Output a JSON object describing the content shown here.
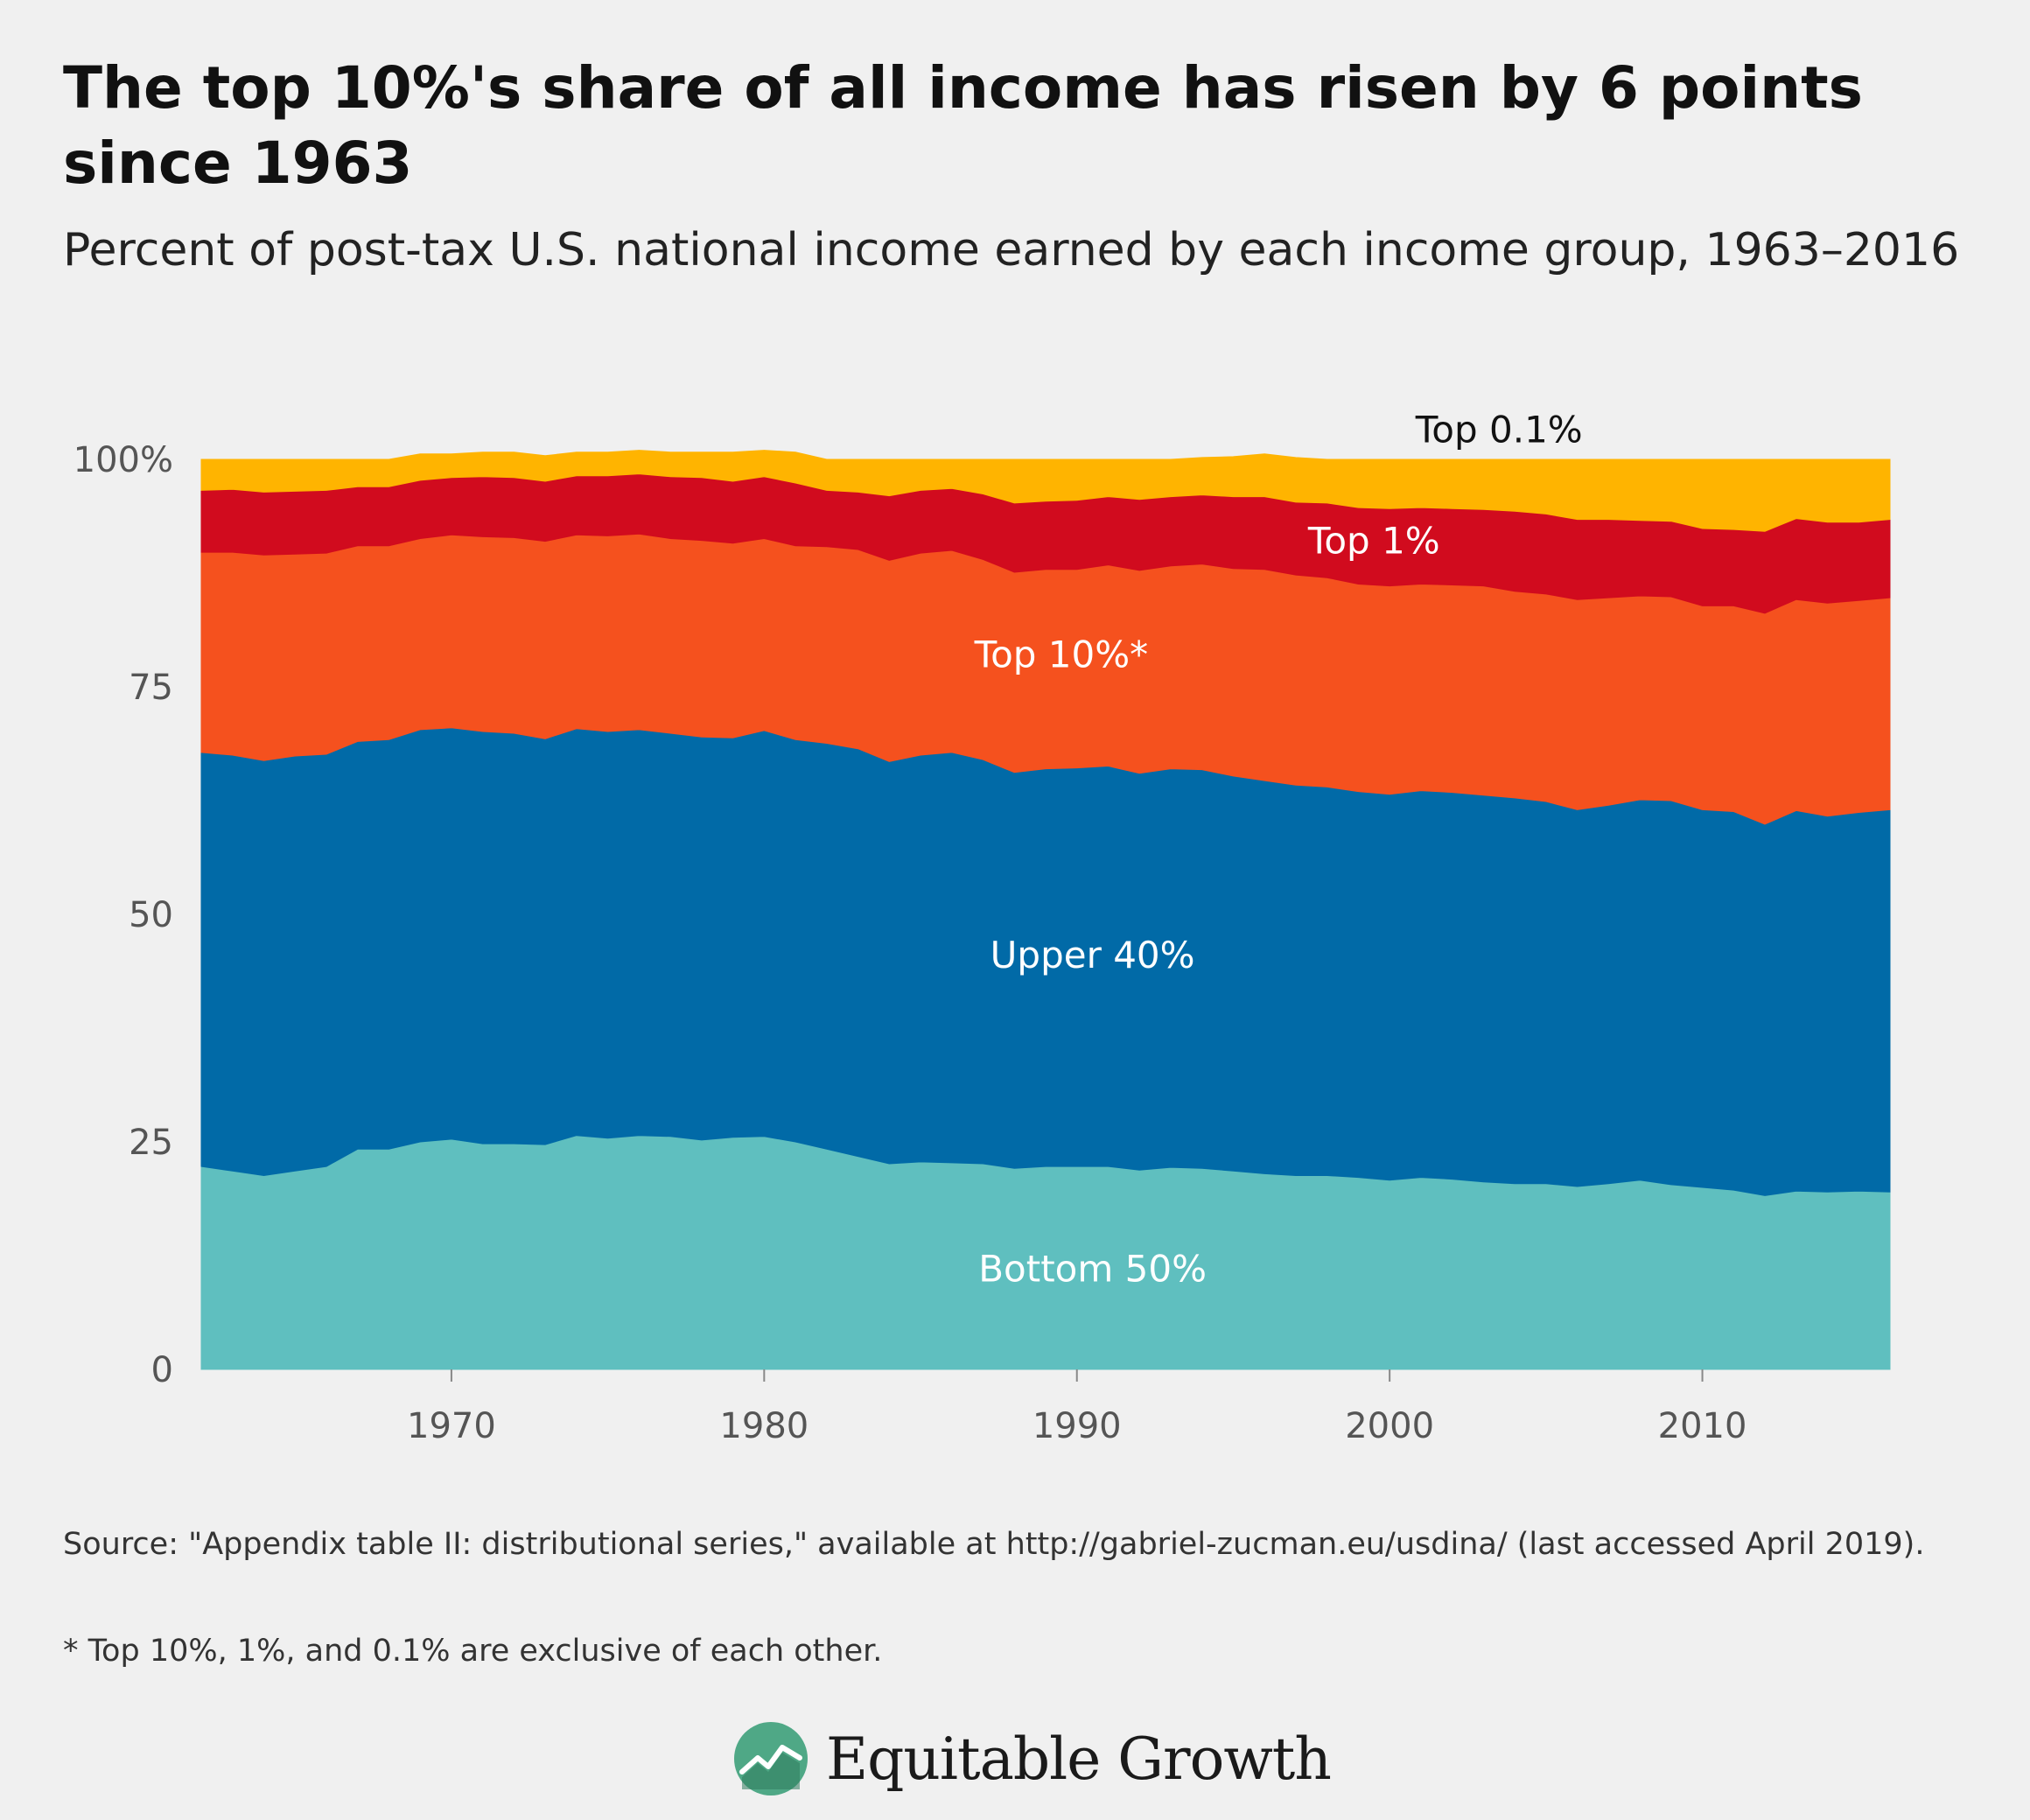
{
  "title": "The top 10%'s share of all income has risen by 6 points since 1963",
  "subtitle": "Percent of post-tax U.S. national income earned by each income group, 1963–2016",
  "footer": {
    "source": "Source: \"Appendix table II: distributional series,\" available at http://gabriel-zucman.eu/usdina/ (last accessed April 2019).",
    "note": "* Top 10%, 1%, and 0.1% are exclusive of each other.",
    "brand": "Equitable Growth"
  },
  "chart_data": {
    "type": "area",
    "stacked": true,
    "title": "The top 10%'s share of all income has risen by 6 points since 1963",
    "subtitle": "Percent of post-tax U.S. national income earned by each income group, 1963–2016",
    "xlabel": "",
    "ylabel": "",
    "xlim": [
      1962,
      2016
    ],
    "ylim": [
      0,
      100
    ],
    "x_ticks": [
      1970,
      1980,
      1990,
      2000,
      2010
    ],
    "x_tick_labels": [
      "1970",
      "1980",
      "1990",
      "2000",
      "2010"
    ],
    "y_ticks": [
      0,
      25,
      50,
      75,
      100
    ],
    "y_tick_labels": [
      "0",
      "25",
      "50",
      "75",
      "100%"
    ],
    "grid": false,
    "legend": "inline labels",
    "x": [
      1962,
      1963,
      1964,
      1965,
      1966,
      1967,
      1968,
      1969,
      1970,
      1971,
      1972,
      1973,
      1974,
      1975,
      1976,
      1977,
      1978,
      1979,
      1980,
      1981,
      1982,
      1983,
      1984,
      1985,
      1986,
      1987,
      1988,
      1989,
      1990,
      1991,
      1992,
      1993,
      1994,
      1995,
      1996,
      1997,
      1998,
      1999,
      2000,
      2001,
      2002,
      2003,
      2004,
      2005,
      2006,
      2007,
      2008,
      2009,
      2010,
      2011,
      2012,
      2013,
      2014,
      2015,
      2016
    ],
    "series": [
      {
        "name": "Bottom 50%",
        "color": "#5fbfbf",
        "label_color": "#ffffff",
        "values": [
          22.3,
          21.8,
          21.3,
          21.8,
          22.3,
          24.2,
          24.2,
          25.0,
          25.3,
          24.8,
          24.8,
          24.7,
          25.7,
          25.4,
          25.7,
          25.6,
          25.2,
          25.5,
          25.6,
          25.0,
          24.2,
          23.4,
          22.6,
          22.8,
          22.7,
          22.6,
          22.1,
          22.3,
          22.3,
          22.3,
          21.9,
          22.2,
          22.1,
          21.8,
          21.5,
          21.3,
          21.3,
          21.1,
          20.8,
          21.1,
          20.9,
          20.6,
          20.4,
          20.4,
          20.1,
          20.4,
          20.8,
          20.3,
          20.0,
          19.7,
          19.1,
          19.6,
          19.5,
          19.6,
          19.5
        ]
      },
      {
        "name": "Upper 40%",
        "color": "#016aa7",
        "label_color": "#ffffff",
        "values": [
          45.5,
          45.7,
          45.6,
          45.6,
          45.3,
          44.8,
          45.0,
          45.3,
          45.2,
          45.3,
          45.1,
          44.6,
          44.7,
          44.7,
          44.6,
          44.3,
          44.3,
          43.9,
          44.6,
          44.2,
          44.6,
          44.8,
          44.2,
          44.7,
          45.1,
          44.4,
          43.5,
          43.7,
          43.8,
          44.0,
          43.6,
          43.8,
          43.8,
          43.4,
          43.2,
          42.9,
          42.7,
          42.4,
          42.4,
          42.5,
          42.5,
          42.5,
          42.4,
          42.0,
          41.4,
          41.6,
          41.8,
          42.2,
          41.5,
          41.6,
          40.8,
          41.8,
          41.3,
          41.6,
          42.0
        ]
      },
      {
        "name": "Top 10%*",
        "color": "#f5511e",
        "label_color": "#ffffff",
        "values": [
          22.0,
          22.3,
          22.6,
          22.2,
          22.1,
          21.5,
          21.3,
          21.0,
          21.2,
          21.4,
          21.5,
          21.7,
          21.3,
          21.5,
          21.5,
          21.4,
          21.6,
          21.4,
          21.1,
          21.3,
          21.6,
          21.9,
          22.1,
          22.2,
          22.2,
          22.0,
          22.0,
          21.9,
          21.8,
          22.1,
          22.3,
          22.3,
          22.6,
          22.8,
          23.2,
          23.1,
          23.0,
          22.8,
          22.9,
          22.7,
          22.8,
          23.0,
          22.7,
          22.8,
          23.1,
          22.8,
          22.4,
          22.4,
          22.4,
          22.6,
          23.2,
          23.2,
          23.4,
          23.3,
          23.3
        ]
      },
      {
        "name": "Top 1%",
        "color": "#d10b1e",
        "label_color": "#ffffff",
        "values": [
          6.8,
          6.9,
          6.9,
          6.9,
          6.9,
          6.5,
          6.5,
          6.4,
          6.3,
          6.6,
          6.6,
          6.6,
          6.5,
          6.6,
          6.6,
          6.8,
          6.9,
          6.8,
          6.8,
          6.9,
          6.2,
          6.3,
          7.1,
          6.9,
          6.8,
          7.2,
          7.6,
          7.5,
          7.6,
          7.5,
          7.8,
          7.6,
          7.6,
          7.9,
          8.0,
          8.0,
          8.2,
          8.4,
          8.5,
          8.4,
          8.4,
          8.4,
          8.8,
          8.8,
          8.8,
          8.6,
          8.3,
          8.3,
          8.5,
          8.4,
          9.0,
          8.9,
          8.9,
          8.6,
          8.6
        ]
      },
      {
        "name": "Top 0.1%",
        "color": "#ffb400",
        "label_color": "#111111",
        "values": [
          3.4,
          3.3,
          3.6,
          3.5,
          3.4,
          3.0,
          3.0,
          2.9,
          2.6,
          2.7,
          2.8,
          2.8,
          2.6,
          2.6,
          2.6,
          2.7,
          2.8,
          3.2,
          2.9,
          3.4,
          3.4,
          3.6,
          4.0,
          3.4,
          3.2,
          3.8,
          4.8,
          4.6,
          4.5,
          4.1,
          4.4,
          4.1,
          4.1,
          4.4,
          4.7,
          4.9,
          4.8,
          5.3,
          5.4,
          5.3,
          5.4,
          5.5,
          5.7,
          6.0,
          6.6,
          6.6,
          6.7,
          6.8,
          7.6,
          7.7,
          7.9,
          6.5,
          6.9,
          6.9,
          6.6
        ]
      }
    ]
  }
}
